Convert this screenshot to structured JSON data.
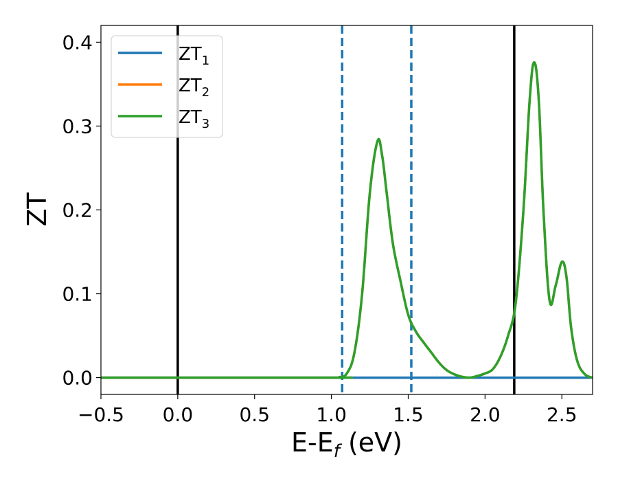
{
  "chart_data": {
    "type": "line",
    "title": "",
    "xlabel": "E-E",
    "xlabel_subscript": "f",
    "xlabel_unit": " (eV)",
    "ylabel": "ZT",
    "xlim": [
      -0.5,
      2.7
    ],
    "ylim": [
      -0.02,
      0.42
    ],
    "xticks": [
      -0.5,
      0.0,
      0.5,
      1.0,
      1.5,
      2.0,
      2.5
    ],
    "xtick_labels": [
      "−0.5",
      "0.0",
      "0.5",
      "1.0",
      "1.5",
      "2.0",
      "2.5"
    ],
    "yticks": [
      0.0,
      0.1,
      0.2,
      0.3,
      0.4
    ],
    "ytick_labels": [
      "0.0",
      "0.1",
      "0.2",
      "0.3",
      "0.4"
    ],
    "grid": false,
    "legend_position": "top-left",
    "series": [
      {
        "name": "ZT",
        "sub": "1",
        "color": "#1f77b4",
        "x": [
          -0.5,
          2.7
        ],
        "y": [
          0.0,
          0.0
        ]
      },
      {
        "name": "ZT",
        "sub": "2",
        "color": "#ff7f0e",
        "x": [
          -0.5,
          1.0,
          1.05,
          1.1,
          1.15,
          1.2,
          1.25,
          1.3,
          1.33,
          1.36,
          1.4,
          1.45,
          1.5,
          1.55,
          1.6,
          1.65,
          1.7,
          1.75,
          1.8,
          1.85,
          1.9,
          1.95,
          2.0,
          2.05,
          2.1,
          2.15,
          2.2,
          2.25,
          2.29,
          2.32,
          2.35,
          2.38,
          2.42,
          2.46,
          2.5,
          2.53,
          2.56,
          2.6,
          2.65,
          2.7
        ],
        "y": [
          0.0,
          0.0,
          0.0005,
          0.005,
          0.03,
          0.1,
          0.22,
          0.282,
          0.265,
          0.22,
          0.16,
          0.115,
          0.075,
          0.055,
          0.042,
          0.03,
          0.018,
          0.009,
          0.004,
          0.001,
          0.0,
          0.002,
          0.005,
          0.01,
          0.025,
          0.05,
          0.09,
          0.2,
          0.33,
          0.376,
          0.33,
          0.2,
          0.092,
          0.11,
          0.138,
          0.12,
          0.06,
          0.02,
          0.004,
          0.0
        ]
      },
      {
        "name": "ZT",
        "sub": "3",
        "color": "#2ca02c",
        "x": [
          -0.5,
          1.0,
          1.05,
          1.1,
          1.15,
          1.2,
          1.25,
          1.3,
          1.33,
          1.36,
          1.4,
          1.45,
          1.5,
          1.55,
          1.6,
          1.65,
          1.7,
          1.75,
          1.8,
          1.85,
          1.9,
          1.95,
          2.0,
          2.05,
          2.1,
          2.15,
          2.2,
          2.25,
          2.29,
          2.32,
          2.35,
          2.38,
          2.42,
          2.46,
          2.5,
          2.53,
          2.56,
          2.6,
          2.65,
          2.7
        ],
        "y": [
          0.0,
          0.0,
          0.0005,
          0.005,
          0.03,
          0.1,
          0.22,
          0.282,
          0.265,
          0.22,
          0.16,
          0.115,
          0.075,
          0.055,
          0.042,
          0.03,
          0.018,
          0.009,
          0.004,
          0.001,
          0.0,
          0.002,
          0.005,
          0.01,
          0.025,
          0.05,
          0.09,
          0.2,
          0.33,
          0.376,
          0.33,
          0.2,
          0.092,
          0.11,
          0.138,
          0.12,
          0.06,
          0.02,
          0.004,
          0.0
        ]
      }
    ],
    "vlines": [
      {
        "x": 0.0,
        "style": "solid",
        "color": "#000000"
      },
      {
        "x": 2.19,
        "style": "solid",
        "color": "#000000"
      },
      {
        "x": 1.07,
        "style": "dashed",
        "color": "#1f77b4"
      },
      {
        "x": 1.52,
        "style": "dashed",
        "color": "#1f77b4"
      }
    ]
  }
}
